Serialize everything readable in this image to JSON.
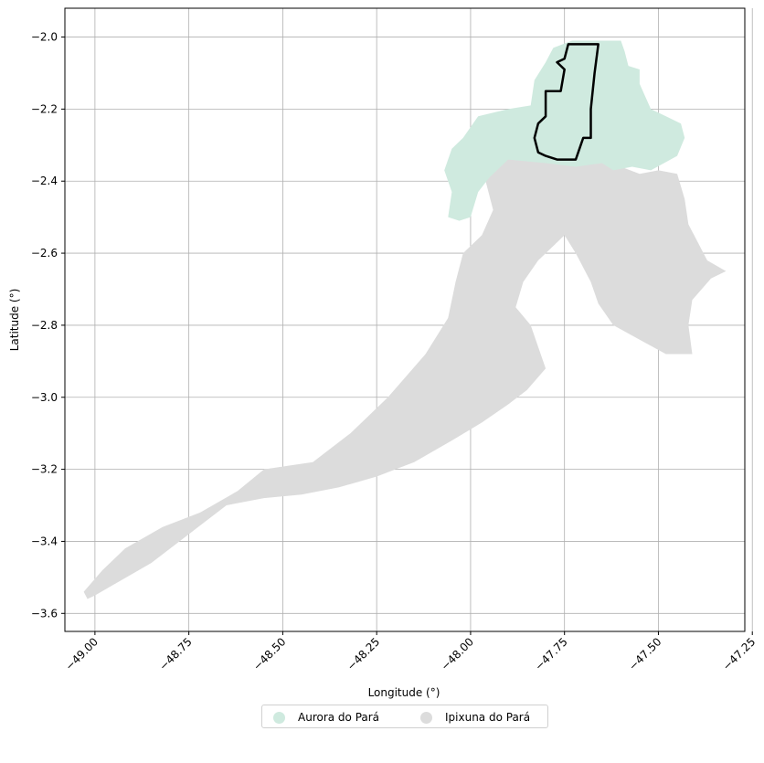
{
  "colors": {
    "aurora": "#cfeadf",
    "ipixuna": "#dcdcdc",
    "outline": "#000000",
    "grid": "#b0b0b0"
  },
  "axes": {
    "xlabel": "Longitude (°)",
    "ylabel": "Latitude (°)",
    "xlim": [
      -49.08,
      -47.27
    ],
    "ylim": [
      -3.65,
      -1.92
    ],
    "x_ticks": [
      {
        "value": -49.0,
        "label": "−49.00"
      },
      {
        "value": -48.75,
        "label": "−48.75"
      },
      {
        "value": -48.5,
        "label": "−48.50"
      },
      {
        "value": -48.25,
        "label": "−48.25"
      },
      {
        "value": -48.0,
        "label": "−48.00"
      },
      {
        "value": -47.75,
        "label": "−47.75"
      },
      {
        "value": -47.5,
        "label": "−47.50"
      },
      {
        "value": -47.25,
        "label": "−47.25"
      }
    ],
    "y_ticks": [
      {
        "value": -2.0,
        "label": "−2.0"
      },
      {
        "value": -2.2,
        "label": "−2.2"
      },
      {
        "value": -2.4,
        "label": "−2.4"
      },
      {
        "value": -2.6,
        "label": "−2.6"
      },
      {
        "value": -2.8,
        "label": "−2.8"
      },
      {
        "value": -3.0,
        "label": "−3.0"
      },
      {
        "value": -3.2,
        "label": "−3.2"
      },
      {
        "value": -3.4,
        "label": "−3.4"
      },
      {
        "value": -3.6,
        "label": "−3.6"
      }
    ],
    "grid": true
  },
  "regions": [
    {
      "id": "aurora",
      "name": "Aurora do Pará",
      "color_key": "aurora",
      "coords": [
        [
          -47.73,
          -2.01
        ],
        [
          -47.6,
          -2.01
        ],
        [
          -47.59,
          -2.04
        ],
        [
          -47.58,
          -2.08
        ],
        [
          -47.55,
          -2.09
        ],
        [
          -47.55,
          -2.13
        ],
        [
          -47.52,
          -2.2
        ],
        [
          -47.48,
          -2.22
        ],
        [
          -47.44,
          -2.24
        ],
        [
          -47.43,
          -2.28
        ],
        [
          -47.45,
          -2.33
        ],
        [
          -47.52,
          -2.37
        ],
        [
          -47.57,
          -2.36
        ],
        [
          -47.62,
          -2.37
        ],
        [
          -47.65,
          -2.35
        ],
        [
          -47.72,
          -2.36
        ],
        [
          -47.8,
          -2.35
        ],
        [
          -47.9,
          -2.34
        ],
        [
          -47.95,
          -2.39
        ],
        [
          -47.98,
          -2.43
        ],
        [
          -48.0,
          -2.5
        ],
        [
          -48.03,
          -2.51
        ],
        [
          -48.06,
          -2.5
        ],
        [
          -48.05,
          -2.43
        ],
        [
          -48.07,
          -2.37
        ],
        [
          -48.05,
          -2.31
        ],
        [
          -48.02,
          -2.28
        ],
        [
          -47.98,
          -2.22
        ],
        [
          -47.9,
          -2.2
        ],
        [
          -47.84,
          -2.19
        ],
        [
          -47.83,
          -2.12
        ],
        [
          -47.8,
          -2.07
        ],
        [
          -47.78,
          -2.03
        ]
      ]
    },
    {
      "id": "ipixuna",
      "name": "Ipixuna do Pará",
      "color_key": "ipixuna",
      "coords": [
        [
          -47.99,
          -2.33
        ],
        [
          -47.9,
          -2.33
        ],
        [
          -47.8,
          -2.34
        ],
        [
          -47.72,
          -2.35
        ],
        [
          -47.65,
          -2.35
        ],
        [
          -47.6,
          -2.36
        ],
        [
          -47.55,
          -2.38
        ],
        [
          -47.5,
          -2.37
        ],
        [
          -47.45,
          -2.38
        ],
        [
          -47.43,
          -2.45
        ],
        [
          -47.42,
          -2.52
        ],
        [
          -47.39,
          -2.58
        ],
        [
          -47.37,
          -2.62
        ],
        [
          -47.32,
          -2.65
        ],
        [
          -47.36,
          -2.67
        ],
        [
          -47.41,
          -2.73
        ],
        [
          -47.42,
          -2.8
        ],
        [
          -47.41,
          -2.88
        ],
        [
          -47.48,
          -2.88
        ],
        [
          -47.55,
          -2.84
        ],
        [
          -47.62,
          -2.8
        ],
        [
          -47.66,
          -2.74
        ],
        [
          -47.68,
          -2.68
        ],
        [
          -47.72,
          -2.6
        ],
        [
          -47.75,
          -2.55
        ],
        [
          -47.78,
          -2.58
        ],
        [
          -47.82,
          -2.62
        ],
        [
          -47.86,
          -2.68
        ],
        [
          -47.88,
          -2.75
        ],
        [
          -47.84,
          -2.8
        ],
        [
          -47.82,
          -2.86
        ],
        [
          -47.8,
          -2.92
        ],
        [
          -47.85,
          -2.98
        ],
        [
          -47.9,
          -3.02
        ],
        [
          -47.97,
          -3.07
        ],
        [
          -48.05,
          -3.12
        ],
        [
          -48.15,
          -3.18
        ],
        [
          -48.25,
          -3.22
        ],
        [
          -48.35,
          -3.25
        ],
        [
          -48.45,
          -3.27
        ],
        [
          -48.55,
          -3.28
        ],
        [
          -48.65,
          -3.3
        ],
        [
          -48.75,
          -3.38
        ],
        [
          -48.85,
          -3.46
        ],
        [
          -48.95,
          -3.52
        ],
        [
          -49.0,
          -3.55
        ],
        [
          -49.02,
          -3.56
        ],
        [
          -49.03,
          -3.54
        ],
        [
          -48.98,
          -3.48
        ],
        [
          -48.92,
          -3.42
        ],
        [
          -48.82,
          -3.36
        ],
        [
          -48.72,
          -3.32
        ],
        [
          -48.62,
          -3.26
        ],
        [
          -48.55,
          -3.2
        ],
        [
          -48.42,
          -3.18
        ],
        [
          -48.32,
          -3.1
        ],
        [
          -48.22,
          -3.0
        ],
        [
          -48.12,
          -2.88
        ],
        [
          -48.06,
          -2.78
        ],
        [
          -48.04,
          -2.68
        ],
        [
          -48.02,
          -2.6
        ],
        [
          -47.97,
          -2.55
        ],
        [
          -47.94,
          -2.48
        ],
        [
          -47.96,
          -2.4
        ]
      ]
    }
  ],
  "highlight_outline": {
    "coords": [
      [
        -47.74,
        -2.02
      ],
      [
        -47.67,
        -2.02
      ],
      [
        -47.66,
        -2.02
      ],
      [
        -47.67,
        -2.1
      ],
      [
        -47.68,
        -2.2
      ],
      [
        -47.68,
        -2.28
      ],
      [
        -47.7,
        -2.28
      ],
      [
        -47.72,
        -2.34
      ],
      [
        -47.77,
        -2.34
      ],
      [
        -47.8,
        -2.33
      ],
      [
        -47.82,
        -2.32
      ],
      [
        -47.83,
        -2.28
      ],
      [
        -47.82,
        -2.24
      ],
      [
        -47.8,
        -2.22
      ],
      [
        -47.8,
        -2.15
      ],
      [
        -47.76,
        -2.15
      ],
      [
        -47.75,
        -2.09
      ],
      [
        -47.77,
        -2.07
      ],
      [
        -47.75,
        -2.06
      ]
    ]
  },
  "legend": {
    "items": [
      {
        "label": "Aurora do Pará",
        "color_key": "aurora"
      },
      {
        "label": "Ipixuna do Pará",
        "color_key": "ipixuna"
      }
    ]
  }
}
